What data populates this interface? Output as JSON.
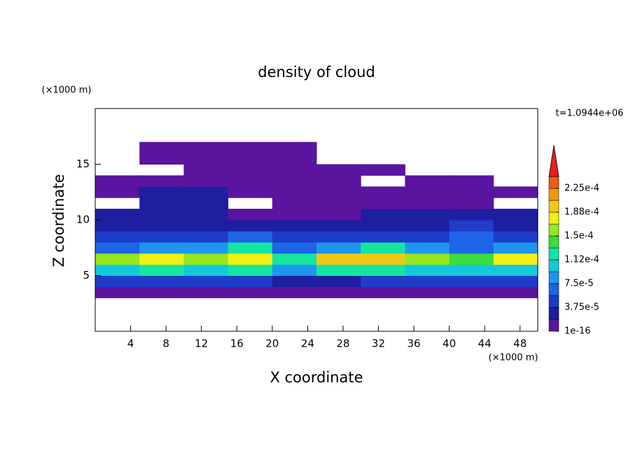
{
  "chart_data": {
    "type": "contour",
    "title": "density of cloud",
    "x_label": "X coordinate",
    "y_label": "Z coordinate",
    "x_unit": "(×1000 m)",
    "y_unit": "(×1000 m)",
    "annotation": "t=1.0944e+06",
    "xlim": [
      0,
      50
    ],
    "ylim": [
      0,
      20
    ],
    "xticks": [
      4,
      8,
      12,
      16,
      20,
      24,
      28,
      32,
      36,
      40,
      44,
      48
    ],
    "yticks": [
      5,
      10,
      15
    ],
    "x": [
      2.5,
      7.5,
      12.5,
      17.5,
      22.5,
      27.5,
      32.5,
      37.5,
      42.5,
      47.5
    ],
    "z": [
      3.5,
      4.5,
      5.5,
      6.5,
      7.5,
      8.5,
      9.5,
      10.5,
      11.5,
      12.5,
      13.5,
      14.5,
      15.5,
      16.5
    ],
    "values": [
      [
        1e-05,
        1e-05,
        1e-05,
        1e-05,
        1e-05,
        1e-05,
        1e-05,
        1e-05,
        1e-05,
        1e-05
      ],
      [
        4e-05,
        4e-05,
        4e-05,
        4e-05,
        3e-05,
        3e-05,
        4e-05,
        4e-05,
        4e-05,
        4e-05
      ],
      [
        0.00011,
        0.00012,
        0.00011,
        0.00012,
        8e-05,
        0.00012,
        0.00013,
        0.00011,
        0.0001,
        0.00011
      ],
      [
        0.00016,
        0.00017,
        0.00016,
        0.00017,
        0.00012,
        0.00019,
        0.0002,
        0.00016,
        0.00014,
        0.00017
      ],
      [
        7e-05,
        8e-05,
        9e-05,
        0.00012,
        6e-05,
        9e-05,
        0.00012,
        9e-05,
        7e-05,
        8e-05
      ],
      [
        5e-05,
        5e-05,
        5e-05,
        6e-05,
        4e-05,
        5e-05,
        5e-05,
        5e-05,
        6e-05,
        5e-05
      ],
      [
        3e-05,
        3e-05,
        3e-05,
        3e-05,
        2e-05,
        3e-05,
        2e-05,
        3e-05,
        4e-05,
        3e-05
      ],
      [
        2e-05,
        2e-05,
        2e-05,
        1e-05,
        1e-05,
        1e-05,
        2e-05,
        2e-05,
        2e-05,
        2e-05
      ],
      [
        null,
        2e-05,
        2e-05,
        null,
        1e-05,
        1e-05,
        1e-05,
        1e-05,
        1e-05,
        null
      ],
      [
        1e-05,
        2e-05,
        2e-05,
        1e-05,
        1e-05,
        1e-05,
        1e-05,
        1e-05,
        1e-05,
        1e-05
      ],
      [
        1e-05,
        1e-05,
        1e-05,
        1e-05,
        1e-05,
        1e-05,
        null,
        1e-05,
        1e-05,
        null
      ],
      [
        null,
        null,
        1e-05,
        1e-05,
        1e-05,
        1e-05,
        1e-05,
        null,
        null,
        null
      ],
      [
        null,
        1e-05,
        1e-05,
        1e-05,
        1e-05,
        null,
        null,
        null,
        null,
        null
      ],
      [
        null,
        1e-05,
        1e-05,
        1e-05,
        1e-05,
        null,
        null,
        null,
        null,
        null
      ]
    ],
    "colorbar": {
      "levels": [
        1e-16,
        1.875e-05,
        3.75e-05,
        5.625e-05,
        7.5e-05,
        9.375e-05,
        0.000112,
        0.00013125,
        0.00015,
        0.00016875,
        0.000188,
        0.00020625,
        0.000225,
        0.00024375
      ],
      "colors": [
        "#5a14a0",
        "#1e1ea0",
        "#1e3cc8",
        "#1e64e6",
        "#1e96f0",
        "#14c8dc",
        "#14e6a0",
        "#3cdc3c",
        "#96e61e",
        "#f0f014",
        "#f0c814",
        "#f09614",
        "#f05a14",
        "#e61e1e",
        "#f0a0a0"
      ],
      "ticks": [
        {
          "value": 1e-16,
          "label": "1e-16"
        },
        {
          "value": 3.75e-05,
          "label": "3.75e-5"
        },
        {
          "value": 7.5e-05,
          "label": "7.5e-5"
        },
        {
          "value": 0.000112,
          "label": "1.12e-4"
        },
        {
          "value": 0.00015,
          "label": "1.5e-4"
        },
        {
          "value": 0.000188,
          "label": "1.88e-4"
        },
        {
          "value": 0.000225,
          "label": "2.25e-4"
        }
      ]
    }
  }
}
